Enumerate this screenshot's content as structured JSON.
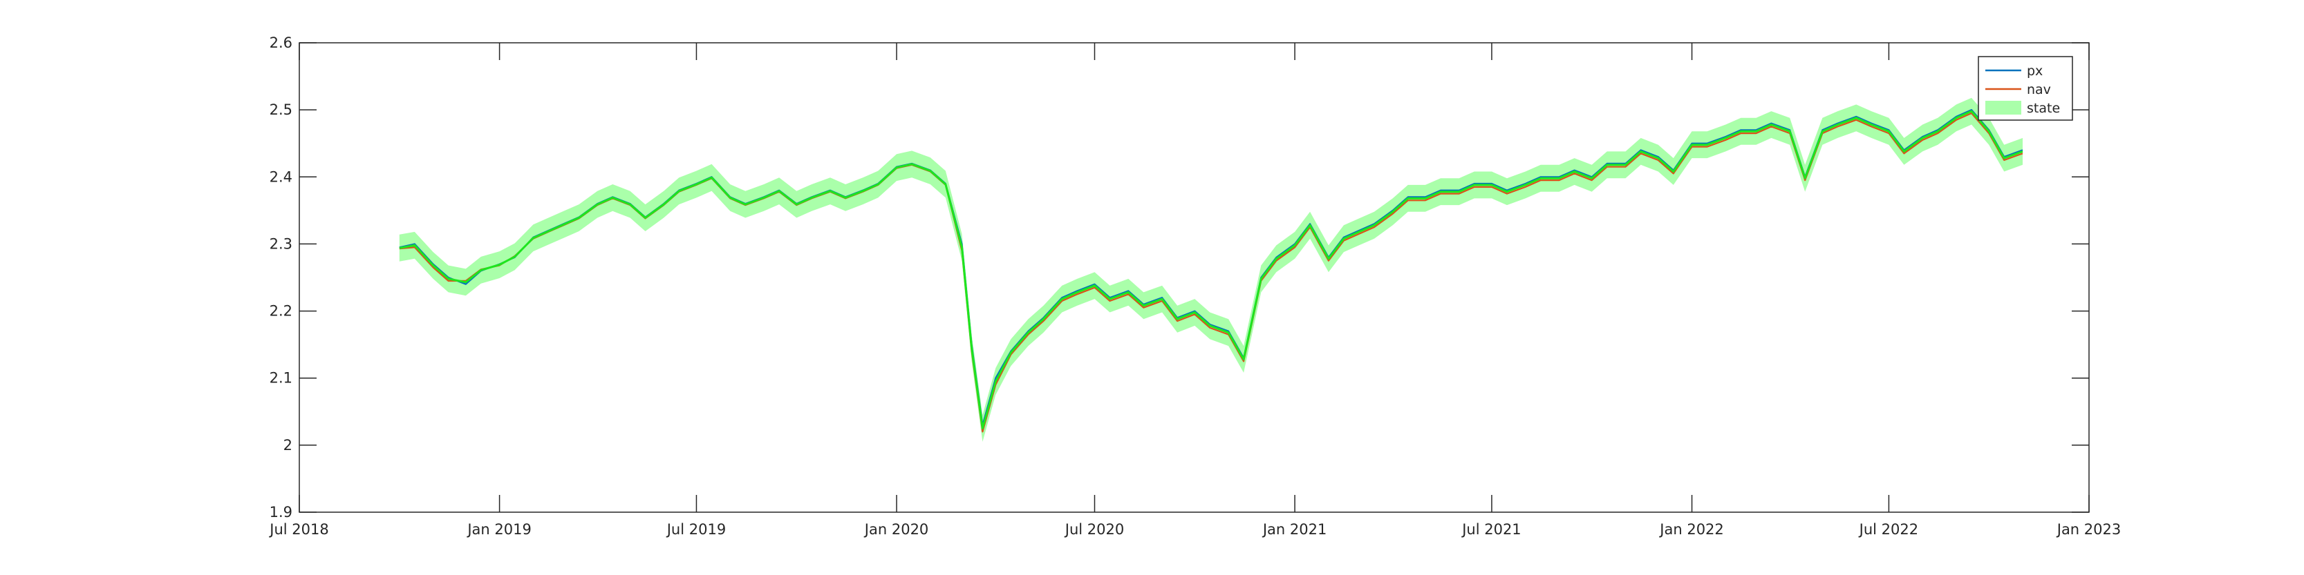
{
  "chart_data": {
    "type": "line",
    "title": "",
    "xlabel": "",
    "ylabel": "",
    "x_ticks": [
      "Jul 2018",
      "Jan 2019",
      "Jul 2019",
      "Jan 2020",
      "Jul 2020",
      "Jan 2021",
      "Jul 2021",
      "Jan 2022",
      "Jul 2022",
      "Jan 2023"
    ],
    "y_ticks": [
      "1.9",
      "2",
      "2.1",
      "2.2",
      "2.3",
      "2.4",
      "2.5",
      "2.6"
    ],
    "xlim": [
      "2018-07-01",
      "2023-01-01"
    ],
    "ylim": [
      1.9,
      2.6
    ],
    "grid": false,
    "legend_position": "top-right",
    "colors": {
      "px": "#0072BD",
      "nav": "#D95319",
      "state_line": "#1ee61e",
      "state_band": "#aaffaa",
      "axis": "#262626"
    },
    "state_band_halfwidth": 0.02,
    "series": [
      {
        "name": "px",
        "kind": "line"
      },
      {
        "name": "nav",
        "kind": "line"
      },
      {
        "name": "state",
        "kind": "band"
      }
    ],
    "x": [
      "2018-10-01",
      "2018-10-15",
      "2018-11-01",
      "2018-11-15",
      "2018-12-01",
      "2018-12-15",
      "2019-01-01",
      "2019-01-15",
      "2019-02-01",
      "2019-02-15",
      "2019-03-01",
      "2019-03-15",
      "2019-04-01",
      "2019-04-15",
      "2019-05-01",
      "2019-05-15",
      "2019-06-01",
      "2019-06-15",
      "2019-07-01",
      "2019-07-15",
      "2019-08-01",
      "2019-08-15",
      "2019-09-01",
      "2019-09-15",
      "2019-10-01",
      "2019-10-15",
      "2019-11-01",
      "2019-11-15",
      "2019-12-01",
      "2019-12-15",
      "2020-01-01",
      "2020-01-15",
      "2020-02-01",
      "2020-02-15",
      "2020-03-01",
      "2020-03-10",
      "2020-03-20",
      "2020-04-01",
      "2020-04-15",
      "2020-05-01",
      "2020-05-15",
      "2020-06-01",
      "2020-06-15",
      "2020-07-01",
      "2020-07-15",
      "2020-08-01",
      "2020-08-15",
      "2020-09-01",
      "2020-09-15",
      "2020-10-01",
      "2020-10-15",
      "2020-11-01",
      "2020-11-15",
      "2020-12-01",
      "2020-12-15",
      "2021-01-01",
      "2021-01-15",
      "2021-02-01",
      "2021-02-15",
      "2021-03-01",
      "2021-03-15",
      "2021-04-01",
      "2021-04-15",
      "2021-05-01",
      "2021-05-15",
      "2021-06-01",
      "2021-06-15",
      "2021-07-01",
      "2021-07-15",
      "2021-08-01",
      "2021-08-15",
      "2021-09-01",
      "2021-09-15",
      "2021-10-01",
      "2021-10-15",
      "2021-11-01",
      "2021-11-15",
      "2021-12-01",
      "2021-12-15",
      "2022-01-01",
      "2022-01-15",
      "2022-02-01",
      "2022-02-15",
      "2022-03-01",
      "2022-03-15",
      "2022-04-01",
      "2022-04-15",
      "2022-05-01",
      "2022-05-15",
      "2022-06-01",
      "2022-06-15",
      "2022-07-01",
      "2022-07-15",
      "2022-08-01",
      "2022-08-15",
      "2022-09-01",
      "2022-09-15",
      "2022-10-01",
      "2022-10-15",
      "2022-11-01"
    ],
    "px": [
      2.295,
      2.3,
      2.27,
      2.25,
      2.24,
      2.26,
      2.27,
      2.28,
      2.31,
      2.32,
      2.33,
      2.34,
      2.36,
      2.37,
      2.36,
      2.34,
      2.36,
      2.38,
      2.39,
      2.4,
      2.37,
      2.36,
      2.37,
      2.38,
      2.36,
      2.37,
      2.38,
      2.37,
      2.38,
      2.39,
      2.415,
      2.42,
      2.41,
      2.39,
      2.3,
      2.15,
      2.03,
      2.1,
      2.14,
      2.17,
      2.19,
      2.22,
      2.23,
      2.24,
      2.22,
      2.23,
      2.21,
      2.22,
      2.19,
      2.2,
      2.18,
      2.17,
      2.13,
      2.25,
      2.28,
      2.3,
      2.33,
      2.28,
      2.31,
      2.32,
      2.33,
      2.35,
      2.37,
      2.37,
      2.38,
      2.38,
      2.39,
      2.39,
      2.38,
      2.39,
      2.4,
      2.4,
      2.41,
      2.4,
      2.42,
      2.42,
      2.44,
      2.43,
      2.41,
      2.45,
      2.45,
      2.46,
      2.47,
      2.47,
      2.48,
      2.47,
      2.4,
      2.47,
      2.48,
      2.49,
      2.48,
      2.47,
      2.44,
      2.46,
      2.47,
      2.49,
      2.5,
      2.47,
      2.43,
      2.44
    ],
    "nav": [
      2.293,
      2.295,
      2.265,
      2.245,
      2.245,
      2.262,
      2.268,
      2.282,
      2.308,
      2.318,
      2.328,
      2.338,
      2.358,
      2.368,
      2.358,
      2.338,
      2.358,
      2.378,
      2.388,
      2.398,
      2.368,
      2.358,
      2.368,
      2.378,
      2.358,
      2.368,
      2.378,
      2.368,
      2.378,
      2.388,
      2.413,
      2.418,
      2.408,
      2.388,
      2.29,
      2.14,
      2.02,
      2.09,
      2.135,
      2.165,
      2.185,
      2.215,
      2.225,
      2.235,
      2.215,
      2.225,
      2.205,
      2.215,
      2.185,
      2.195,
      2.175,
      2.165,
      2.125,
      2.245,
      2.275,
      2.295,
      2.325,
      2.275,
      2.305,
      2.315,
      2.325,
      2.345,
      2.365,
      2.365,
      2.375,
      2.375,
      2.385,
      2.385,
      2.375,
      2.385,
      2.395,
      2.395,
      2.405,
      2.395,
      2.415,
      2.415,
      2.435,
      2.425,
      2.405,
      2.445,
      2.445,
      2.455,
      2.465,
      2.465,
      2.475,
      2.465,
      2.395,
      2.465,
      2.475,
      2.485,
      2.475,
      2.465,
      2.435,
      2.455,
      2.465,
      2.485,
      2.495,
      2.465,
      2.425,
      2.435
    ],
    "state": [
      2.294,
      2.298,
      2.268,
      2.248,
      2.243,
      2.261,
      2.269,
      2.281,
      2.309,
      2.319,
      2.329,
      2.339,
      2.359,
      2.369,
      2.359,
      2.339,
      2.359,
      2.379,
      2.389,
      2.399,
      2.369,
      2.359,
      2.369,
      2.379,
      2.359,
      2.369,
      2.379,
      2.369,
      2.379,
      2.389,
      2.414,
      2.419,
      2.409,
      2.389,
      2.295,
      2.145,
      2.025,
      2.095,
      2.138,
      2.168,
      2.188,
      2.218,
      2.228,
      2.238,
      2.218,
      2.228,
      2.208,
      2.218,
      2.188,
      2.198,
      2.178,
      2.168,
      2.128,
      2.248,
      2.278,
      2.298,
      2.328,
      2.278,
      2.308,
      2.318,
      2.328,
      2.348,
      2.368,
      2.368,
      2.378,
      2.378,
      2.388,
      2.388,
      2.378,
      2.388,
      2.398,
      2.398,
      2.408,
      2.398,
      2.418,
      2.418,
      2.438,
      2.428,
      2.408,
      2.448,
      2.448,
      2.458,
      2.468,
      2.468,
      2.478,
      2.468,
      2.398,
      2.468,
      2.478,
      2.488,
      2.478,
      2.468,
      2.438,
      2.458,
      2.468,
      2.488,
      2.498,
      2.468,
      2.428,
      2.438
    ]
  }
}
